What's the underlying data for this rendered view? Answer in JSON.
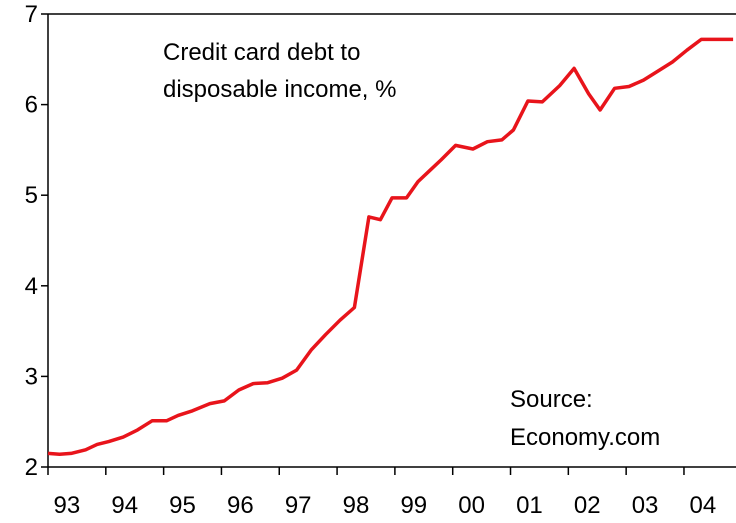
{
  "chart_data": {
    "type": "line",
    "title": "",
    "xlabel": "",
    "ylabel": "",
    "xlim": [
      1993,
      2004.9
    ],
    "ylim": [
      2,
      7
    ],
    "yticks": [
      2,
      3,
      4,
      5,
      6,
      7
    ],
    "xticks": [
      "93",
      "94",
      "95",
      "96",
      "97",
      "98",
      "99",
      "00",
      "01",
      "02",
      "03",
      "04"
    ],
    "grid": false,
    "legend": "none",
    "line_color": "#e8141b",
    "annotations": {
      "label_line1": "Credit card debt to",
      "label_line2": "disposable income, %",
      "source_line1": "Source:",
      "source_line2": "Economy.com"
    },
    "series": [
      {
        "x": [
          1993.0,
          1993.2,
          1993.4,
          1993.65,
          1993.85,
          1994.05,
          1994.3,
          1994.55,
          1994.8,
          1995.05,
          1995.25,
          1995.5,
          1995.8,
          1996.05,
          1996.3,
          1996.55,
          1996.8,
          1997.05,
          1997.3,
          1997.55,
          1997.8,
          1998.05,
          1998.3,
          1998.55,
          1998.75,
          1998.95,
          1999.2,
          1999.4,
          1999.6,
          1999.8,
          2000.05,
          2000.35,
          2000.6,
          2000.85,
          2001.05,
          2001.3,
          2001.55,
          2001.85,
          2002.1,
          2002.35,
          2002.55,
          2002.8,
          2003.05,
          2003.3,
          2003.55,
          2003.8,
          2004.05,
          2004.3,
          2004.55,
          2004.85
        ],
        "y": [
          2.15,
          2.14,
          2.15,
          2.19,
          2.25,
          2.28,
          2.33,
          2.41,
          2.51,
          2.51,
          2.57,
          2.62,
          2.7,
          2.73,
          2.85,
          2.92,
          2.93,
          2.98,
          3.07,
          3.29,
          3.46,
          3.62,
          3.76,
          4.76,
          4.73,
          4.97,
          4.97,
          5.15,
          5.27,
          5.39,
          5.55,
          5.51,
          5.59,
          5.61,
          5.72,
          6.04,
          6.03,
          6.21,
          6.4,
          6.12,
          5.94,
          6.18,
          6.2,
          6.27,
          6.37,
          6.47,
          6.6,
          6.72,
          6.72,
          6.72
        ]
      }
    ]
  }
}
